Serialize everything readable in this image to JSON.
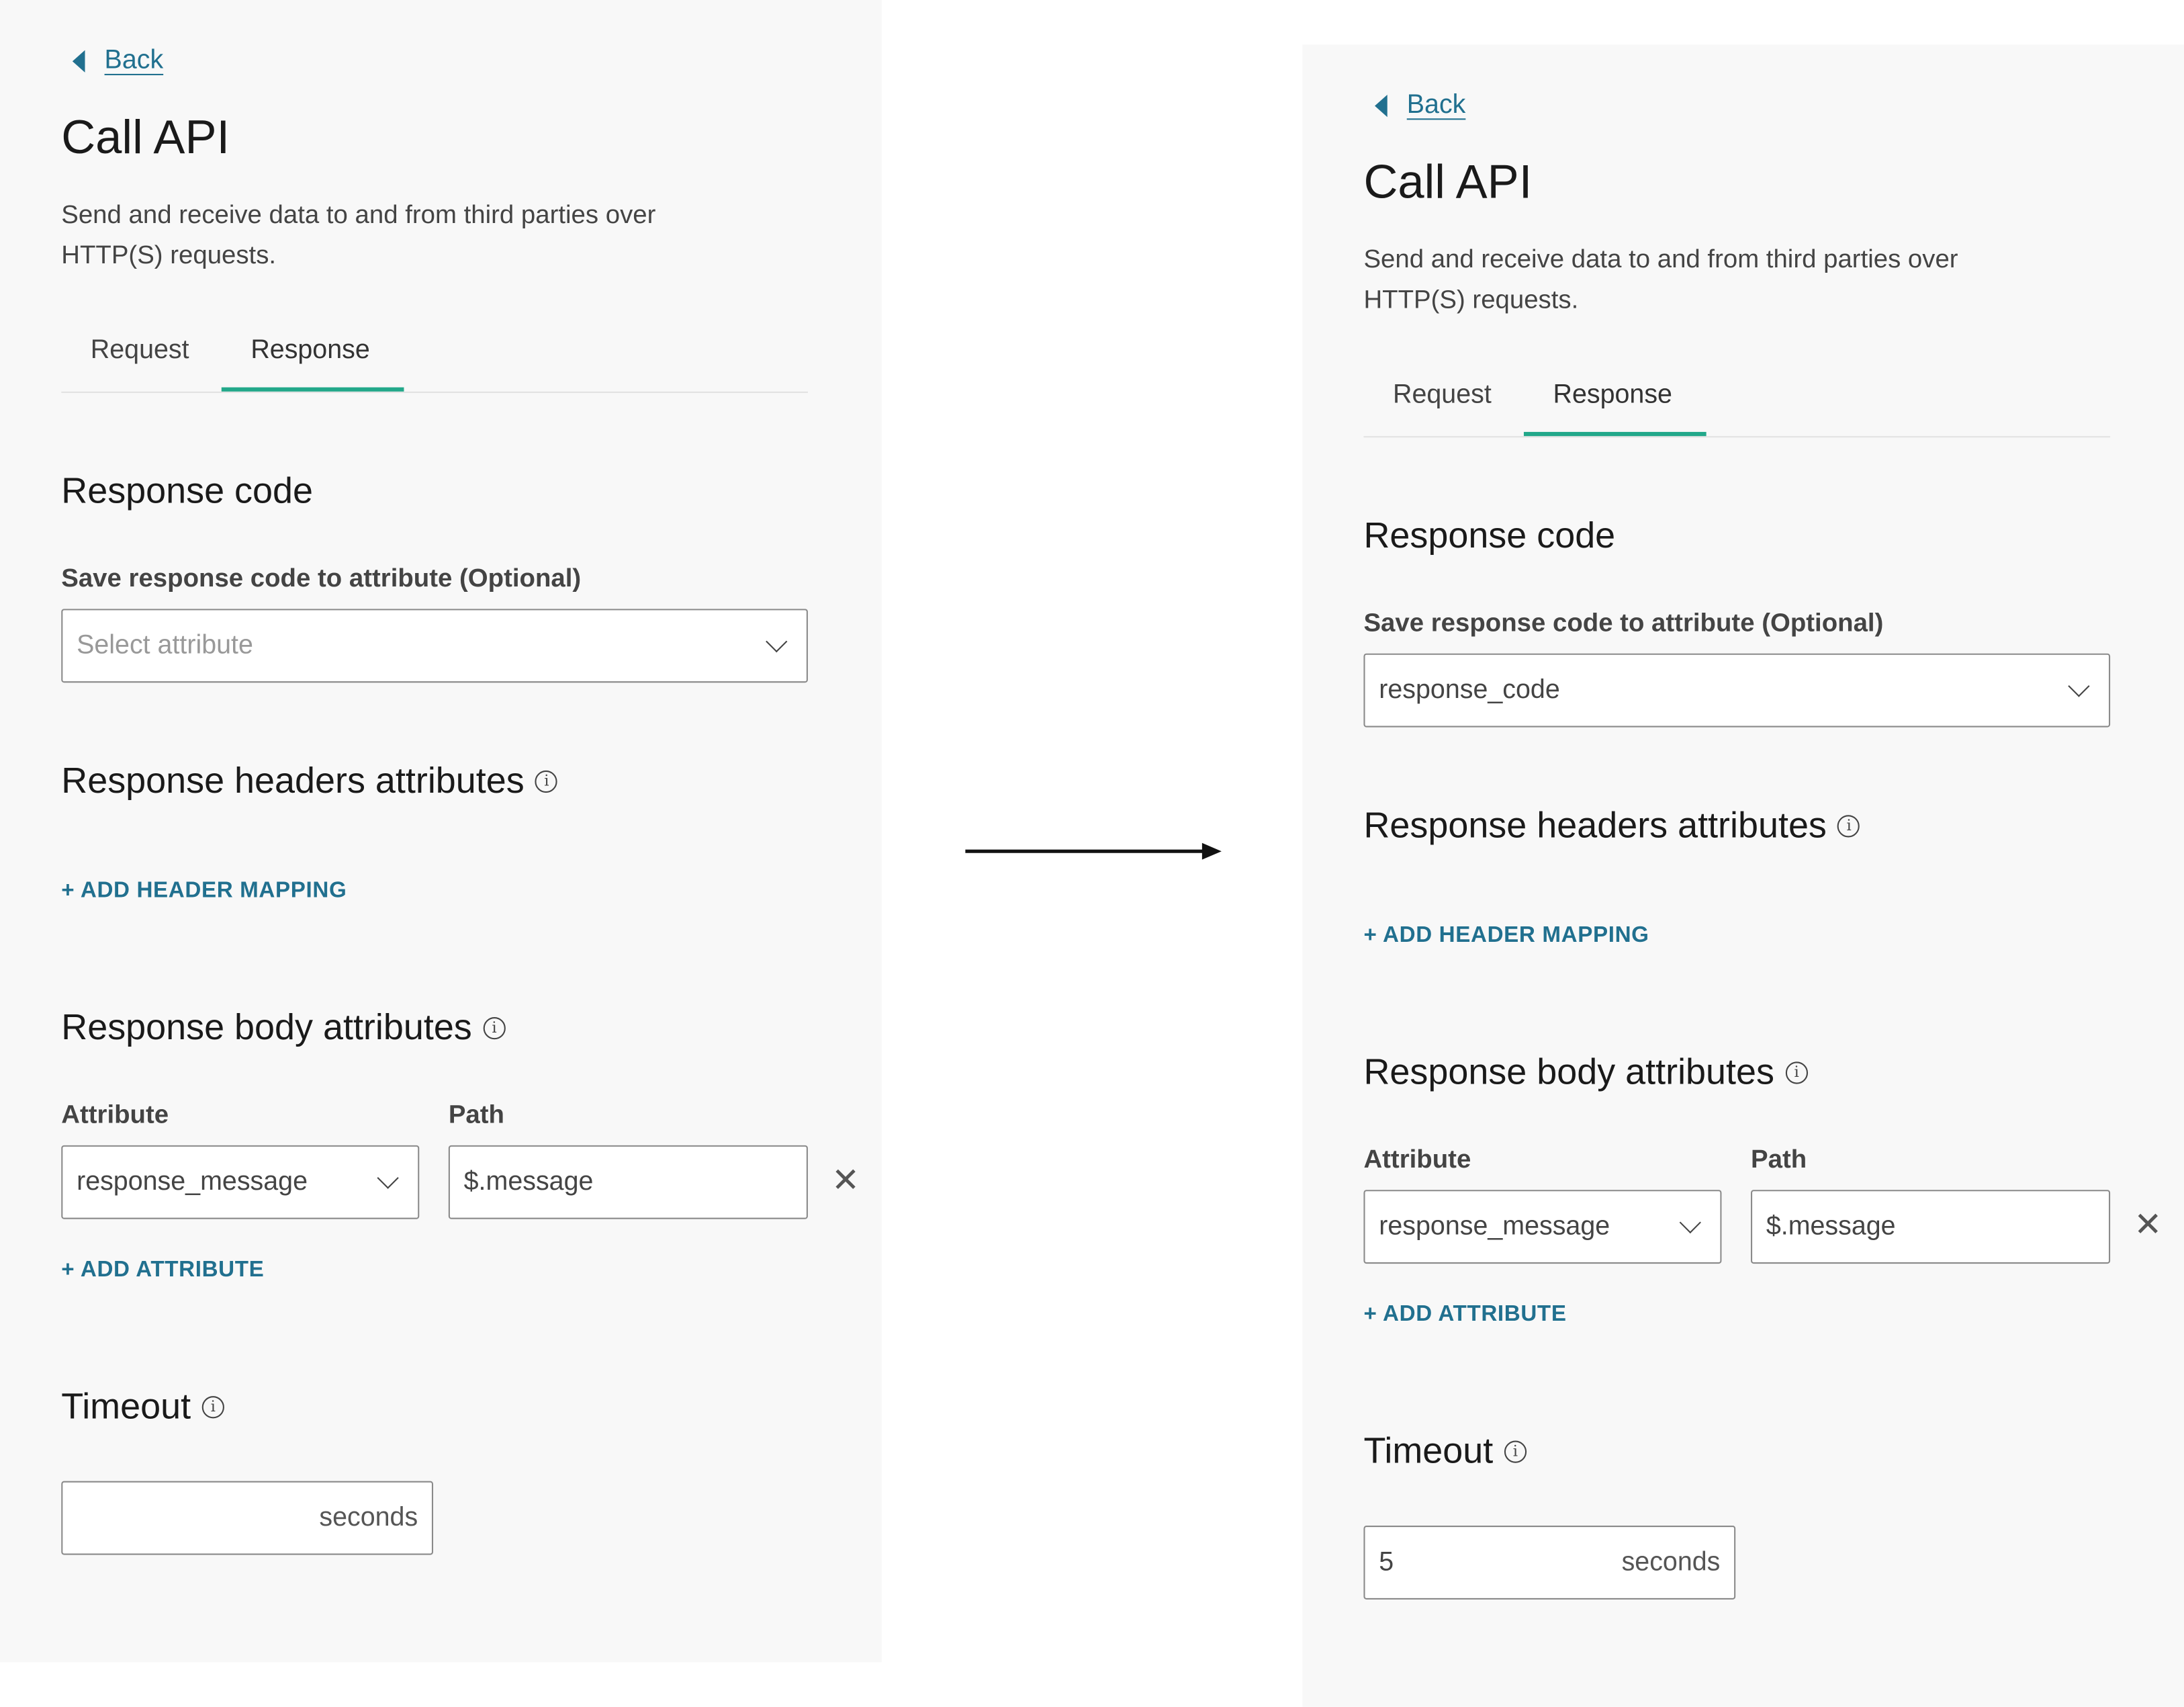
{
  "panels": [
    {
      "back_label": "Back",
      "title": "Call API",
      "description": "Send and receive data to and from third parties over HTTP(S) requests.",
      "tabs": [
        "Request",
        "Response"
      ],
      "active_tab": "Response",
      "response_code": {
        "heading": "Response code",
        "label": "Save response code to attribute (Optional)",
        "value": "",
        "placeholder": "Select attribute"
      },
      "headers": {
        "heading": "Response headers attributes",
        "add_label": "+ ADD HEADER MAPPING"
      },
      "body": {
        "heading": "Response body attributes",
        "attribute_label": "Attribute",
        "path_label": "Path",
        "attribute_value": "response_message",
        "path_value": "$.message",
        "add_label": "+ ADD ATTRIBUTE"
      },
      "timeout": {
        "heading": "Timeout",
        "value": "",
        "unit": "seconds"
      }
    },
    {
      "back_label": "Back",
      "title": "Call API",
      "description": "Send and receive data to and from third parties over HTTP(S) requests.",
      "tabs": [
        "Request",
        "Response"
      ],
      "active_tab": "Response",
      "response_code": {
        "heading": "Response code",
        "label": "Save response code to attribute (Optional)",
        "value": "response_code",
        "placeholder": ""
      },
      "headers": {
        "heading": "Response headers attributes",
        "add_label": "+ ADD HEADER MAPPING"
      },
      "body": {
        "heading": "Response body attributes",
        "attribute_label": "Attribute",
        "path_label": "Path",
        "attribute_value": "response_message",
        "path_value": "$.message",
        "add_label": "+ ADD ATTRIBUTE"
      },
      "timeout": {
        "heading": "Timeout",
        "value": "5",
        "unit": "seconds"
      }
    }
  ],
  "colors": {
    "accent": "#21708f",
    "tab_active": "#22a88a",
    "panel_bg": "#f8f8f8"
  },
  "icons": [
    "caret-left-icon",
    "chevron-down-icon",
    "info-icon",
    "close-icon",
    "arrow-right-icon"
  ]
}
